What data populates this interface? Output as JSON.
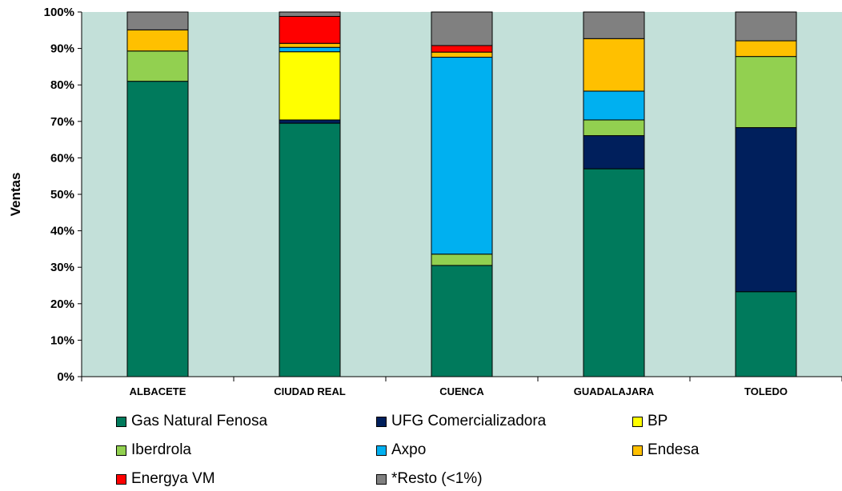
{
  "chart_data": {
    "type": "bar",
    "stacked": true,
    "percent": true,
    "categories": [
      "ALBACETE",
      "CIUDAD REAL",
      "CUENCA",
      "GUADALAJARA",
      "TOLEDO"
    ],
    "ylabel": "Ventas",
    "xlabel": "",
    "ylim": [
      0,
      100
    ],
    "yticks": [
      "0%",
      "10%",
      "20%",
      "30%",
      "40%",
      "50%",
      "60%",
      "70%",
      "80%",
      "90%",
      "100%"
    ],
    "grid": false,
    "legend_position": "bottom",
    "plot_background": "#c3e0d9",
    "series": [
      {
        "name": "Gas Natural Fenosa",
        "color": "#007a5c",
        "values": [
          81.0,
          69.5,
          30.5,
          57.0,
          23.3
        ]
      },
      {
        "name": "UFG Comercializadora",
        "color": "#001f5c",
        "values": [
          0,
          0.9,
          0,
          9.1,
          45.0
        ]
      },
      {
        "name": "BP",
        "color": "#ffff00",
        "values": [
          0,
          18.7,
          0,
          0,
          0
        ]
      },
      {
        "name": "Iberdrola",
        "color": "#92d050",
        "values": [
          8.3,
          0,
          3.1,
          4.3,
          19.5
        ]
      },
      {
        "name": "Axpo",
        "color": "#00b0f0",
        "values": [
          0,
          1.2,
          54.0,
          7.9,
          0
        ]
      },
      {
        "name": "Endesa",
        "color": "#ffc000",
        "values": [
          5.8,
          1.1,
          1.4,
          14.4,
          4.3
        ]
      },
      {
        "name": "Energya VM",
        "color": "#ff0000",
        "values": [
          0,
          7.4,
          1.8,
          0,
          0
        ]
      },
      {
        "name": "*Resto (<1%)",
        "color": "#808080",
        "values": [
          4.9,
          1.2,
          9.2,
          7.3,
          7.9
        ]
      }
    ]
  }
}
